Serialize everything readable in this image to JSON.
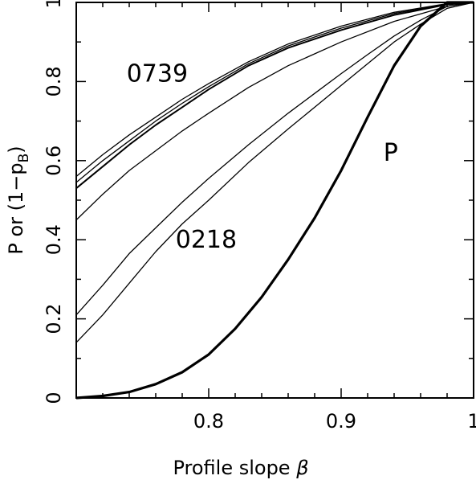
{
  "chart_data": {
    "type": "line",
    "title": "",
    "xlabel": "Profile slope",
    "xlabel_symbol": "β",
    "ylabel_main": "P or (1−p",
    "ylabel_sub": "B",
    "ylabel_close": ")",
    "xlim": [
      0.7,
      1.0
    ],
    "ylim": [
      0,
      1
    ],
    "x_ticks": [
      0.8,
      0.9,
      1.0
    ],
    "x_tick_labels": [
      "0.8",
      "0.9",
      "1"
    ],
    "y_ticks": [
      0,
      0.2,
      0.4,
      0.6,
      0.8,
      1.0
    ],
    "y_tick_labels": [
      "0",
      "0.2",
      "0.4",
      "0.6",
      "0.8",
      "1"
    ],
    "grid": false,
    "annotations": [
      {
        "text": "0739",
        "x": 0.738,
        "y": 0.82
      },
      {
        "text": "0218",
        "x": 0.775,
        "y": 0.4
      },
      {
        "text": "P",
        "x": 0.932,
        "y": 0.62
      }
    ],
    "series": [
      {
        "thick": false,
        "x": [
          0.7,
          0.72,
          0.74,
          0.76,
          0.78,
          0.8,
          0.83,
          0.86,
          0.9,
          0.94,
          0.98,
          1.0
        ],
        "y": [
          0.56,
          0.615,
          0.665,
          0.71,
          0.755,
          0.795,
          0.85,
          0.895,
          0.94,
          0.975,
          0.997,
          1.0
        ]
      },
      {
        "thick": true,
        "x": [
          0.7,
          0.72,
          0.74,
          0.76,
          0.78,
          0.8,
          0.83,
          0.86,
          0.9,
          0.94,
          0.98,
          1.0
        ],
        "y": [
          0.53,
          0.585,
          0.64,
          0.69,
          0.735,
          0.78,
          0.84,
          0.885,
          0.93,
          0.968,
          0.995,
          1.0
        ]
      },
      {
        "thick": false,
        "x": [
          0.7,
          0.72,
          0.74,
          0.76,
          0.78,
          0.8,
          0.83,
          0.86,
          0.9,
          0.94,
          0.98,
          1.0
        ],
        "y": [
          0.545,
          0.6,
          0.65,
          0.7,
          0.745,
          0.787,
          0.845,
          0.89,
          0.935,
          0.972,
          0.996,
          1.0
        ]
      },
      {
        "thick": false,
        "x": [
          0.7,
          0.72,
          0.74,
          0.76,
          0.78,
          0.8,
          0.83,
          0.86,
          0.9,
          0.94,
          0.98,
          1.0
        ],
        "y": [
          0.45,
          0.515,
          0.575,
          0.625,
          0.675,
          0.72,
          0.785,
          0.84,
          0.9,
          0.952,
          0.99,
          1.0
        ]
      },
      {
        "thick": false,
        "x": [
          0.7,
          0.72,
          0.74,
          0.76,
          0.78,
          0.8,
          0.83,
          0.86,
          0.88,
          0.9,
          0.92,
          0.94,
          0.96,
          0.98,
          1.0
        ],
        "y": [
          0.21,
          0.285,
          0.365,
          0.43,
          0.495,
          0.555,
          0.64,
          0.72,
          0.77,
          0.82,
          0.868,
          0.915,
          0.955,
          0.99,
          1.0
        ]
      },
      {
        "thick": false,
        "x": [
          0.7,
          0.72,
          0.74,
          0.76,
          0.78,
          0.8,
          0.83,
          0.86,
          0.88,
          0.9,
          0.92,
          0.94,
          0.96,
          0.98,
          1.0
        ],
        "y": [
          0.14,
          0.21,
          0.29,
          0.37,
          0.44,
          0.5,
          0.595,
          0.68,
          0.735,
          0.79,
          0.845,
          0.9,
          0.945,
          0.985,
          1.0
        ]
      },
      {
        "thick": true,
        "bold": true,
        "x": [
          0.7,
          0.72,
          0.74,
          0.76,
          0.78,
          0.8,
          0.82,
          0.84,
          0.86,
          0.88,
          0.9,
          0.92,
          0.94,
          0.96,
          0.98,
          1.0
        ],
        "y": [
          0.0,
          0.005,
          0.015,
          0.035,
          0.065,
          0.11,
          0.175,
          0.255,
          0.35,
          0.455,
          0.575,
          0.71,
          0.84,
          0.94,
          1.0,
          1.0
        ]
      }
    ]
  }
}
